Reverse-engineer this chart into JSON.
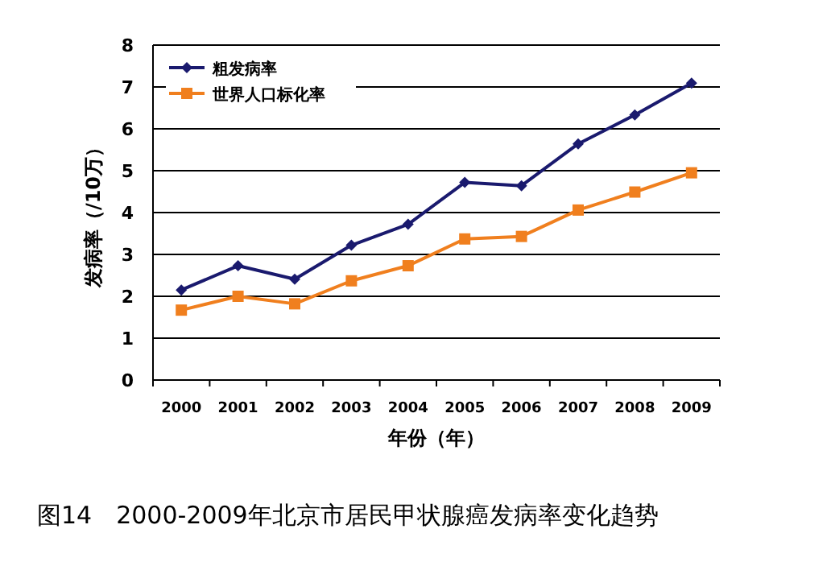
{
  "chart_data": {
    "type": "line",
    "title": "图14　2000-2009年北京市居民甲状腺癌发病率变化趋势",
    "xlabel": "年份（年）",
    "ylabel": "发病率（/10万）",
    "categories": [
      "2000",
      "2001",
      "2002",
      "2003",
      "2004",
      "2005",
      "2006",
      "2007",
      "2008",
      "2009"
    ],
    "series": [
      {
        "name": "粗发病率",
        "color": "#1a1a6e",
        "marker": "diamond",
        "values": [
          2.15,
          2.73,
          2.41,
          3.22,
          3.72,
          4.72,
          4.64,
          5.64,
          6.33,
          7.09
        ]
      },
      {
        "name": "世界人口标化率",
        "color": "#f07f1e",
        "marker": "square",
        "values": [
          1.67,
          2.0,
          1.82,
          2.37,
          2.73,
          3.37,
          3.43,
          4.06,
          4.49,
          4.95
        ]
      }
    ],
    "ylim": [
      0,
      8
    ],
    "yticks": [
      0,
      1,
      2,
      3,
      4,
      5,
      6,
      7,
      8
    ],
    "grid": "y",
    "legend": "top left"
  }
}
